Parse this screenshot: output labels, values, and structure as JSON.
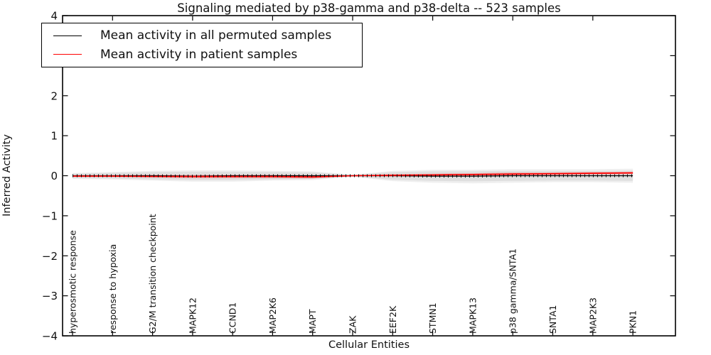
{
  "title": "Signaling mediated by p38-gamma and p38-delta -- 523 samples",
  "xlabel": "Cellular Entities",
  "ylabel": "Inferred Activity",
  "legend": {
    "items": [
      {
        "label": "Mean activity in all permuted samples",
        "color": "#000000"
      },
      {
        "label": "Mean activity in patient samples",
        "color": "#ff0000"
      }
    ]
  },
  "chart_data": {
    "type": "line",
    "title": "Signaling mediated by p38-gamma and p38-delta -- 523 samples",
    "xlabel": "Cellular Entities",
    "ylabel": "Inferred Activity",
    "ylim": [
      -4,
      4
    ],
    "y_ticks": [
      "4",
      "3",
      "2",
      "1",
      "0",
      "−1",
      "−2",
      "−3",
      "−4"
    ],
    "y_tick_values": [
      4,
      3,
      2,
      1,
      0,
      -1,
      -2,
      -3,
      -4
    ],
    "grid": false,
    "legend_position": "upper left",
    "categories": [
      "hyperosmotic response",
      "response to hypoxia",
      "G2/M transition checkpoint",
      "MAPK12",
      "CCND1",
      "MAP2K6",
      "MAPT",
      "ZAK",
      "EEF2K",
      "STMN1",
      "MAPK13",
      "p38 gamma/SNTA1",
      "SNTA1",
      "MAP2K3",
      "PKN1"
    ],
    "series": [
      {
        "name": "Mean activity in all permuted samples",
        "color": "#000000",
        "style": "solid-with-tick-texture",
        "values": [
          0,
          0,
          0,
          -0.01,
          0,
          0,
          0,
          0,
          0,
          -0.01,
          -0.01,
          0,
          0,
          0,
          0
        ]
      },
      {
        "name": "Mean activity in patient samples",
        "color": "#ff0000",
        "style": "solid",
        "values": [
          -0.01,
          -0.01,
          -0.02,
          -0.02,
          -0.02,
          -0.02,
          -0.03,
          0.0,
          0.01,
          0.02,
          0.03,
          0.04,
          0.05,
          0.06,
          0.07
        ]
      }
    ],
    "bands": [
      {
        "name": "permuted-sample-range",
        "color": "#d9d9d9",
        "upper": [
          0.05,
          0.07,
          0.09,
          0.1,
          0.1,
          0.09,
          0.08,
          0.02,
          0.09,
          0.11,
          0.11,
          0.12,
          0.12,
          0.12,
          0.13
        ],
        "lower": [
          -0.06,
          -0.07,
          -0.09,
          -0.11,
          -0.11,
          -0.09,
          -0.08,
          -0.02,
          -0.1,
          -0.13,
          -0.14,
          -0.13,
          -0.12,
          -0.12,
          -0.13
        ]
      },
      {
        "name": "patient-sample-range",
        "color": "#ff0000",
        "upper": [
          0.01,
          0.01,
          0.02,
          0.02,
          0.02,
          0.02,
          0.01,
          0.01,
          0.04,
          0.05,
          0.06,
          0.08,
          0.08,
          0.09,
          0.1
        ],
        "lower": [
          -0.03,
          -0.03,
          -0.04,
          -0.06,
          -0.06,
          -0.06,
          -0.07,
          -0.01,
          -0.02,
          -0.01,
          0.0,
          0.01,
          0.02,
          0.03,
          0.04
        ]
      }
    ]
  }
}
